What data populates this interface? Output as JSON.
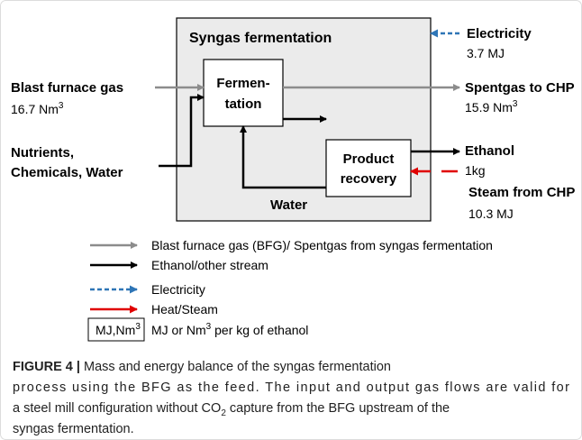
{
  "diagram": {
    "title": "Syngas fermentation",
    "fermentation": [
      "Fermen-",
      "tation"
    ],
    "product_recovery": [
      "Product",
      "recovery"
    ],
    "water": "Water",
    "inputs": {
      "bfg": {
        "label": "Blast furnace gas",
        "amount": "16.7 Nm",
        "sup": "3"
      },
      "nutrients": [
        "Nutrients,",
        "Chemicals, Water"
      ],
      "electricity": {
        "label": "Electricity",
        "amount": "3.7 MJ"
      },
      "steam": {
        "label": "Steam from CHP",
        "amount": "10.3 MJ"
      }
    },
    "outputs": {
      "spentgas": {
        "label": "Spentgas to CHP",
        "amount": "15.9 Nm",
        "sup": "3"
      },
      "ethanol": {
        "label": "Ethanol",
        "amount": "1kg"
      }
    }
  },
  "legend": {
    "items": [
      "Blast furnace gas (BFG)/ Spentgas from syngas fermentation",
      "Ethanol/other stream",
      "Electricity",
      "Heat/Steam"
    ],
    "unit_box": {
      "label": "MJ,Nm",
      "sup": "3"
    },
    "unit_text": {
      "pre": "MJ or Nm",
      "sup": "3",
      "post": " per kg of ethanol"
    }
  },
  "caption": {
    "label": "FIGURE 4 |",
    "line1": " Mass and energy balance of the syngas fermentation",
    "line2": "process using the BFG as the feed. The input and output gas flows are valid for",
    "line3": {
      "pre": "a steel mill configuration without CO",
      "sub": "2",
      "post": " capture from the BFG upstream of the"
    },
    "line4": "syngas fermentation."
  }
}
